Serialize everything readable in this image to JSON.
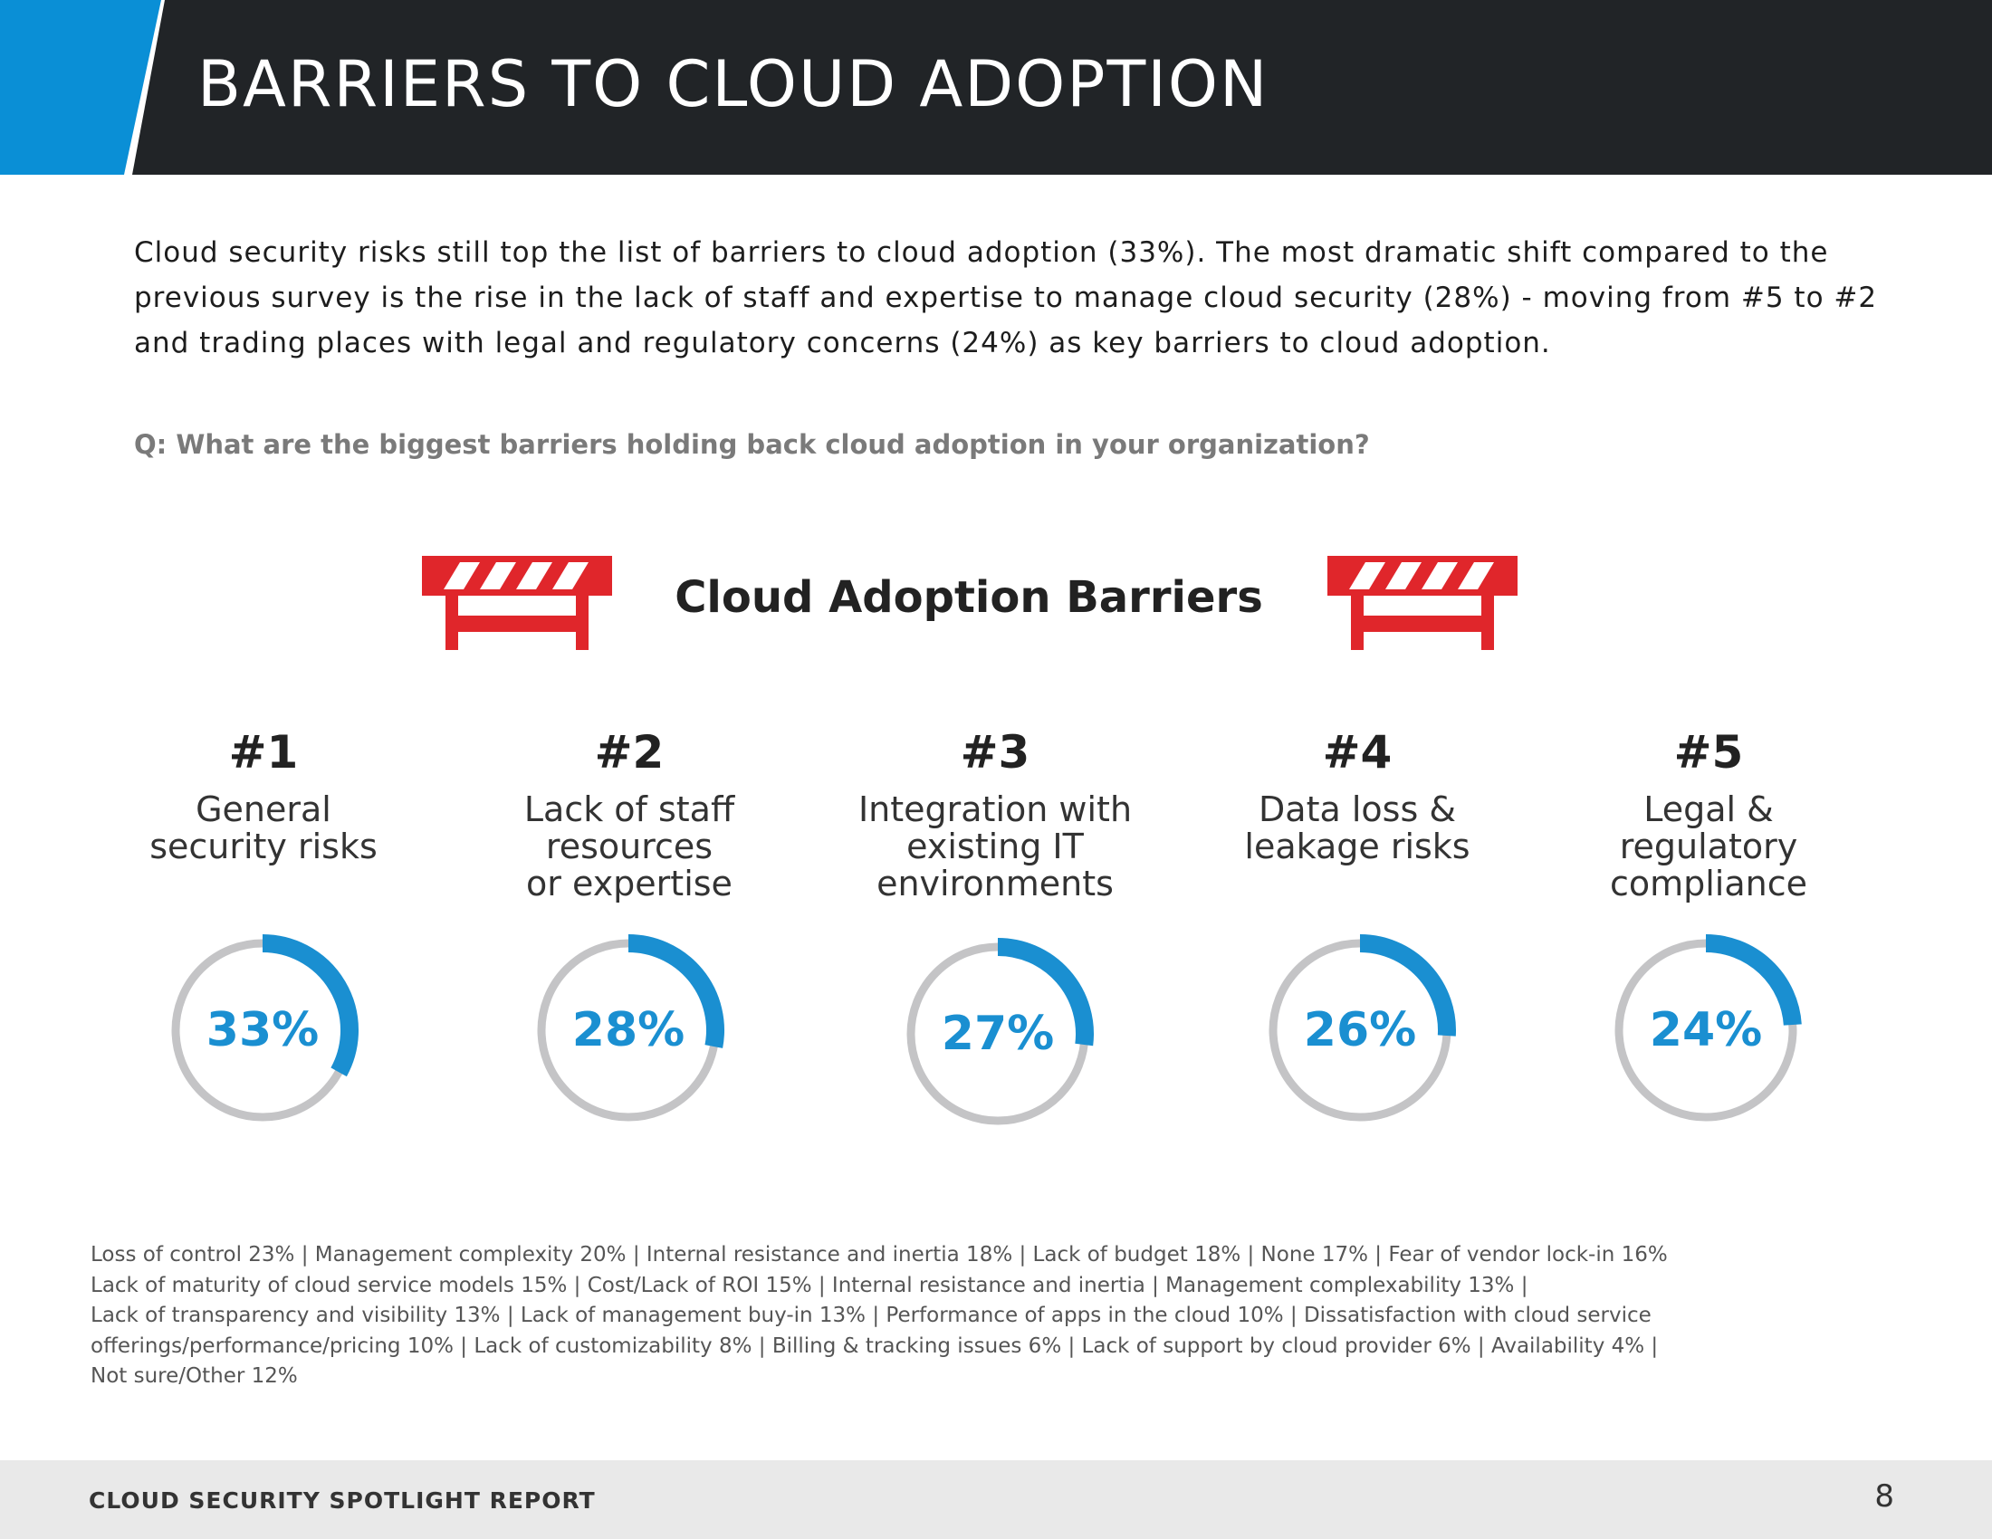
{
  "header": {
    "title": "BARRIERS TO CLOUD ADOPTION",
    "accent_color": "#0a8fd6",
    "band_color": "#212427"
  },
  "intro": "Cloud security risks still top the list of barriers to cloud adoption (33%). The most dramatic shift compared to the previous survey is the rise in the lack of staff and expertise to manage cloud security (28%) - moving from #5 to #2 and trading places with legal and regulatory concerns (24%) as key barriers to cloud adoption.",
  "question": "Q: What are the biggest barriers holding back cloud adoption in your organization?",
  "chart_title": "Cloud Adoption Barriers",
  "barriers": [
    {
      "rank": "#1",
      "label_lines": [
        "General",
        "security risks"
      ],
      "value": 33,
      "value_label": "33%"
    },
    {
      "rank": "#2",
      "label_lines": [
        "Lack of staff",
        "resources",
        "or expertise"
      ],
      "value": 28,
      "value_label": "28%"
    },
    {
      "rank": "#3",
      "label_lines": [
        "Integration with",
        "existing IT",
        "environments"
      ],
      "value": 27,
      "value_label": "27%"
    },
    {
      "rank": "#4",
      "label_lines": [
        "Data loss &",
        "leakage risks"
      ],
      "value": 26,
      "value_label": "26%"
    },
    {
      "rank": "#5",
      "label_lines": [
        "Legal &",
        "regulatory",
        "compliance"
      ],
      "value": 24,
      "value_label": "24%"
    }
  ],
  "chart_data": {
    "type": "donut",
    "title": "Cloud Adoption Barriers",
    "categories": [
      "General security risks",
      "Lack of staff resources or expertise",
      "Integration with existing IT environments",
      "Data loss & leakage risks",
      "Legal & regulatory compliance"
    ],
    "values": [
      33,
      28,
      27,
      26,
      24
    ],
    "unit": "%"
  },
  "others_lines": [
    "Loss of control 23%  |  Management complexity 20%   |  Internal resistance and inertia 18%  |  Lack of budget 18%  |  None 17%  |  Fear of vendor lock-in 16%",
    "Lack of maturity of cloud service models 15% |  Cost/Lack of ROI 15%   |  Internal resistance and inertia  |  Management complexability 13%  |",
    "Lack of transparency and visibility 13%  |  Lack of management buy-in 13% |  Performance of apps in the cloud 10%  |  Dissatisfaction with cloud service",
    "offerings/performance/pricing 10% |  Lack of customizability 8%  |  Billing & tracking issues 6% |  Lack of support by cloud provider 6%   |  Availability 4%  |",
    "Not sure/Other 12%"
  ],
  "footer": {
    "title": "CLOUD SECURITY SPOTLIGHT REPORT",
    "page_number": "8"
  },
  "colors": {
    "ring_fill": "#1a8fd1",
    "ring_track": "#c4c4c6",
    "barrier_red": "#e0262b"
  }
}
